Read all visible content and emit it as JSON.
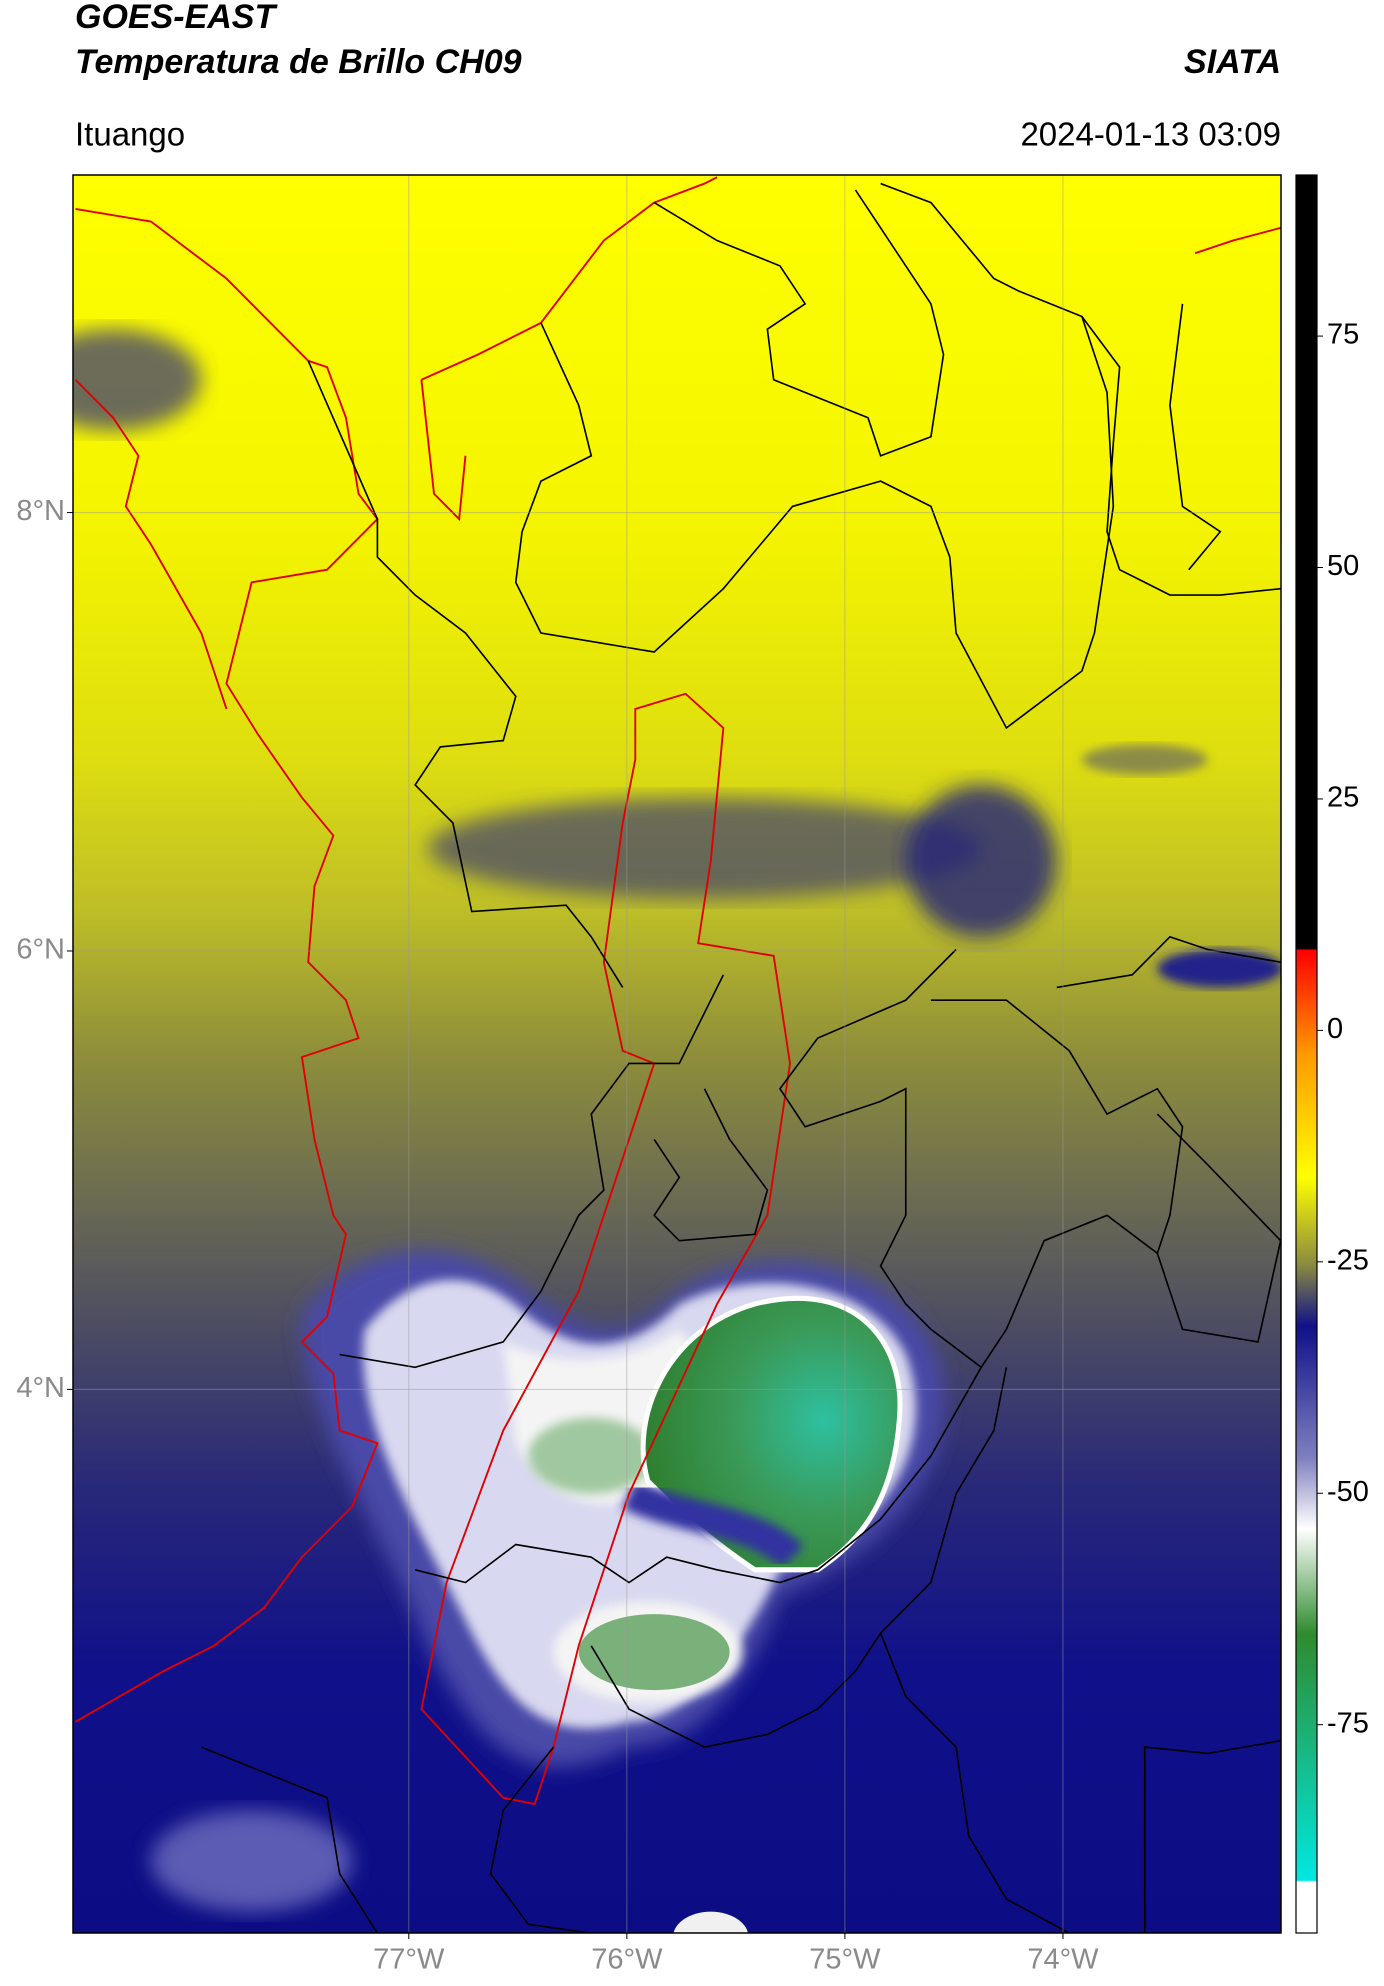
{
  "header": {
    "title": "GOES-EAST",
    "subtitle": "Temperatura de Brillo CH09",
    "brand": "SIATA",
    "location": "Ituango",
    "datetime": "2024-01-13 03:09"
  },
  "map": {
    "xlim": [
      -78.54,
      -73.0
    ],
    "ylim": [
      1.52,
      9.54
    ],
    "xticks": [
      {
        "value": -77,
        "label": "77°W"
      },
      {
        "value": -76,
        "label": "76°W"
      },
      {
        "value": -75,
        "label": "75°W"
      },
      {
        "value": -74,
        "label": "74°W"
      }
    ],
    "yticks": [
      {
        "value": 8,
        "label": "8°N"
      },
      {
        "value": 6,
        "label": "6°N"
      },
      {
        "value": 4,
        "label": "4°N"
      }
    ],
    "grid": true
  },
  "colorbar": {
    "lim": [
      -97.5,
      92.4
    ],
    "ticks": [
      75,
      50,
      25,
      0,
      -25,
      -50,
      -75
    ]
  }
}
